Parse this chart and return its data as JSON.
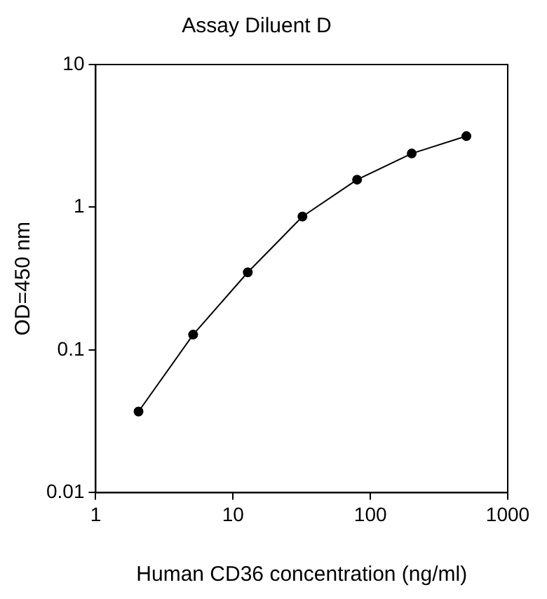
{
  "chart_data": {
    "type": "line",
    "title": "Assay Diluent D",
    "xlabel": "Human CD36 concentration (ng/ml)",
    "ylabel": "OD=450 nm",
    "x": [
      2.05,
      5.12,
      12.8,
      32,
      80,
      200,
      500
    ],
    "series": [
      {
        "color": "#000000",
        "values": [
          0.037,
          0.128,
          0.35,
          0.86,
          1.56,
          2.38,
          3.15
        ]
      }
    ],
    "log": "xy",
    "xlim": [
      1,
      1000
    ],
    "xticks": [
      1,
      10,
      100,
      1000
    ],
    "ylim": [
      0.01,
      10
    ],
    "yticks": [
      0.01,
      0.1,
      1,
      10
    ],
    "marker": "circle",
    "line_style": "solid",
    "grid": false,
    "legend": false
  }
}
